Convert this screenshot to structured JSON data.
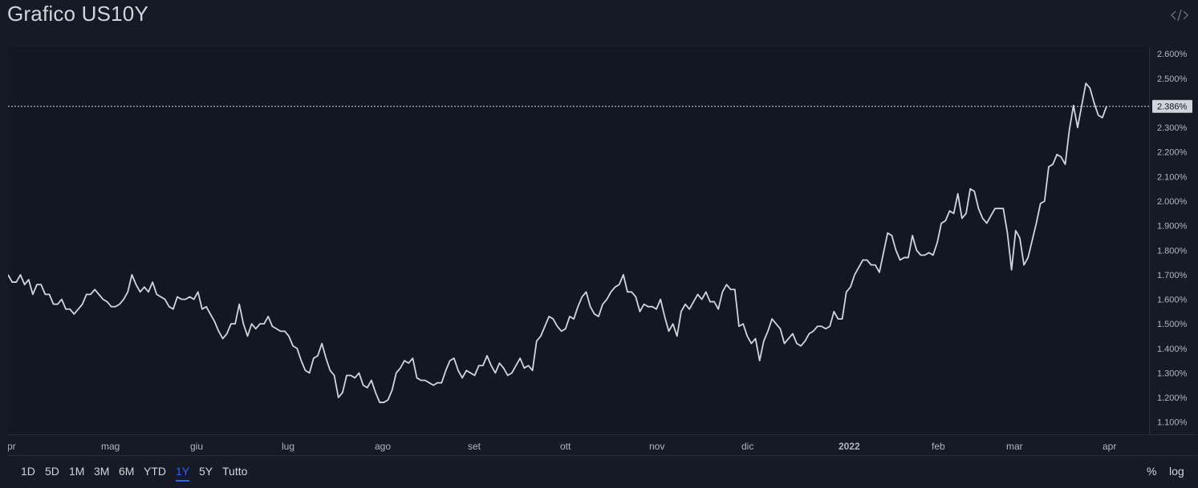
{
  "header": {
    "title": "Grafico US10Y"
  },
  "icons": {
    "embed": "code-brackets-icon"
  },
  "range_buttons": [
    {
      "label": "1D"
    },
    {
      "label": "5D"
    },
    {
      "label": "1M"
    },
    {
      "label": "3M"
    },
    {
      "label": "6M"
    },
    {
      "label": "YTD"
    },
    {
      "label": "1Y",
      "active": true
    },
    {
      "label": "5Y"
    },
    {
      "label": "Tutto"
    }
  ],
  "scale_buttons": {
    "percent": "%",
    "log": "log"
  },
  "colors": {
    "background": "#161a25",
    "plot_background": "#131722",
    "line": "#d1d4dc",
    "grid": "#2a2e39",
    "accent": "#2962ff"
  },
  "chart_data": {
    "type": "line",
    "symbol": "US10Y",
    "x_labels": [
      "pr",
      "mag",
      "giu",
      "lug",
      "ago",
      "set",
      "ott",
      "nov",
      "dic",
      "2022",
      "feb",
      "mar",
      "apr"
    ],
    "y_ticks": [
      "2.600%",
      "2.500%",
      "2.400%",
      "2.300%",
      "2.200%",
      "2.100%",
      "2.000%",
      "1.900%",
      "1.800%",
      "1.700%",
      "1.600%",
      "1.500%",
      "1.400%",
      "1.300%",
      "1.200%",
      "1.100%"
    ],
    "ylim": [
      1.05,
      2.63
    ],
    "last_value": 2.386,
    "last_value_label": "2.386%",
    "grid": false,
    "values": [
      1.7,
      1.67,
      1.67,
      1.7,
      1.66,
      1.68,
      1.62,
      1.66,
      1.66,
      1.62,
      1.62,
      1.58,
      1.58,
      1.6,
      1.56,
      1.56,
      1.54,
      1.56,
      1.58,
      1.62,
      1.62,
      1.64,
      1.62,
      1.6,
      1.59,
      1.57,
      1.57,
      1.58,
      1.6,
      1.63,
      1.7,
      1.66,
      1.63,
      1.65,
      1.63,
      1.67,
      1.62,
      1.61,
      1.6,
      1.57,
      1.56,
      1.61,
      1.6,
      1.6,
      1.61,
      1.6,
      1.63,
      1.56,
      1.57,
      1.54,
      1.51,
      1.47,
      1.44,
      1.46,
      1.5,
      1.5,
      1.58,
      1.5,
      1.45,
      1.5,
      1.48,
      1.5,
      1.5,
      1.53,
      1.49,
      1.48,
      1.47,
      1.47,
      1.45,
      1.41,
      1.4,
      1.35,
      1.31,
      1.3,
      1.36,
      1.37,
      1.42,
      1.36,
      1.31,
      1.29,
      1.2,
      1.22,
      1.29,
      1.29,
      1.28,
      1.3,
      1.25,
      1.24,
      1.27,
      1.22,
      1.18,
      1.18,
      1.19,
      1.23,
      1.3,
      1.32,
      1.35,
      1.34,
      1.36,
      1.28,
      1.27,
      1.27,
      1.26,
      1.25,
      1.26,
      1.26,
      1.31,
      1.35,
      1.36,
      1.31,
      1.28,
      1.31,
      1.3,
      1.29,
      1.33,
      1.33,
      1.37,
      1.33,
      1.3,
      1.34,
      1.32,
      1.29,
      1.3,
      1.33,
      1.36,
      1.32,
      1.33,
      1.31,
      1.43,
      1.45,
      1.49,
      1.53,
      1.52,
      1.49,
      1.47,
      1.48,
      1.53,
      1.52,
      1.57,
      1.61,
      1.63,
      1.57,
      1.54,
      1.53,
      1.58,
      1.6,
      1.63,
      1.65,
      1.66,
      1.7,
      1.63,
      1.63,
      1.61,
      1.55,
      1.58,
      1.57,
      1.57,
      1.56,
      1.6,
      1.53,
      1.47,
      1.5,
      1.45,
      1.55,
      1.58,
      1.56,
      1.59,
      1.62,
      1.6,
      1.63,
      1.59,
      1.59,
      1.56,
      1.63,
      1.66,
      1.64,
      1.64,
      1.49,
      1.5,
      1.45,
      1.42,
      1.44,
      1.35,
      1.43,
      1.47,
      1.52,
      1.5,
      1.48,
      1.42,
      1.44,
      1.46,
      1.42,
      1.41,
      1.43,
      1.46,
      1.47,
      1.49,
      1.49,
      1.48,
      1.49,
      1.55,
      1.52,
      1.52,
      1.63,
      1.65,
      1.7,
      1.73,
      1.76,
      1.76,
      1.74,
      1.74,
      1.71,
      1.79,
      1.87,
      1.86,
      1.8,
      1.76,
      1.77,
      1.77,
      1.86,
      1.8,
      1.78,
      1.78,
      1.79,
      1.78,
      1.83,
      1.91,
      1.92,
      1.96,
      1.95,
      2.03,
      1.93,
      1.95,
      2.05,
      2.04,
      1.97,
      1.93,
      1.91,
      1.94,
      1.97,
      1.97,
      1.97,
      1.87,
      1.72,
      1.88,
      1.85,
      1.74,
      1.77,
      1.84,
      1.91,
      1.99,
      2.0,
      2.14,
      2.15,
      2.19,
      2.18,
      2.15,
      2.29,
      2.39,
      2.3,
      2.39,
      2.48,
      2.46,
      2.4,
      2.35,
      2.34,
      2.386
    ]
  }
}
